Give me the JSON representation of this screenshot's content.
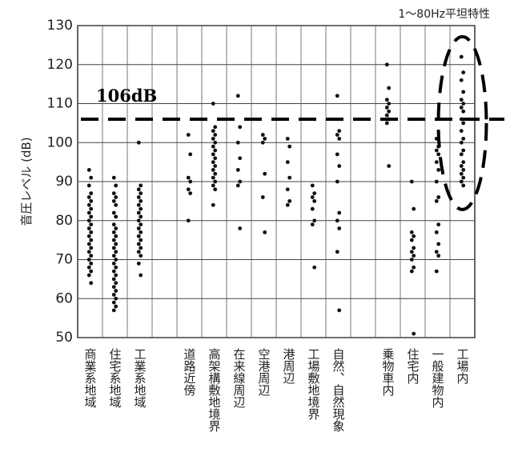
{
  "chart_data": {
    "type": "strip",
    "note": "1〜80Hz平坦特性",
    "ylabel": "音圧レベル (dB)",
    "ylim": [
      50,
      130
    ],
    "yticks": [
      50,
      60,
      70,
      80,
      90,
      100,
      110,
      120,
      130
    ],
    "grid": true,
    "color": "#111111",
    "reference_line": {
      "value": 106,
      "label": "106dB"
    },
    "categories": [
      "商業系地域",
      "住宅系地域",
      "工業系地域",
      null,
      "道路近傍",
      "高架構敷地境界",
      "在来線周辺",
      "空港周辺",
      "港周辺",
      "工場敷地境界",
      "自然、自然現象",
      null,
      "乗物車内",
      "住宅内",
      "一般建物内",
      "工場内"
    ],
    "values": [
      [
        93,
        91,
        89,
        87,
        86,
        85,
        84,
        83,
        82,
        81,
        80,
        79,
        78,
        77,
        76,
        75,
        74,
        73,
        72,
        71,
        70,
        69,
        68,
        67,
        66,
        64
      ],
      [
        91,
        89,
        87,
        86,
        85,
        84,
        82,
        81,
        79,
        78,
        77,
        76,
        75,
        74,
        73,
        72,
        71,
        70,
        69,
        68,
        67,
        66,
        65,
        64,
        63,
        62,
        61,
        60,
        59,
        58,
        57
      ],
      [
        100,
        89,
        88,
        87,
        86,
        85,
        84,
        83,
        82,
        81,
        80,
        79,
        78,
        77,
        76,
        75,
        74,
        73,
        72,
        71,
        69,
        66
      ],
      [],
      [
        102,
        97,
        91,
        90,
        88,
        87,
        80
      ],
      [
        110,
        104,
        103,
        102,
        101,
        100,
        99,
        98,
        97,
        96,
        95,
        94,
        93,
        92,
        91,
        90,
        89,
        88,
        84
      ],
      [
        112,
        104,
        100,
        96,
        93,
        90,
        89,
        78
      ],
      [
        102,
        101,
        100,
        92,
        86,
        77
      ],
      [
        101,
        99,
        95,
        91,
        88,
        85,
        84
      ],
      [
        89,
        87,
        86,
        85,
        83,
        80,
        79,
        68
      ],
      [
        112,
        103,
        102,
        101,
        97,
        94,
        90,
        82,
        80,
        78,
        72,
        57
      ],
      [],
      [
        120,
        114,
        111,
        110,
        109,
        108,
        107,
        106,
        105,
        94
      ],
      [
        90,
        83,
        77,
        76,
        75,
        73,
        72,
        71,
        70,
        68,
        67,
        51
      ],
      [
        101,
        99,
        98,
        97,
        95,
        93,
        90,
        86,
        85,
        79,
        77,
        74,
        72,
        71,
        67
      ],
      [
        122,
        118,
        116,
        113,
        111,
        110,
        109,
        108,
        106,
        105,
        103,
        101,
        100,
        98,
        97,
        95,
        94,
        93,
        92,
        91,
        90,
        89
      ]
    ]
  }
}
